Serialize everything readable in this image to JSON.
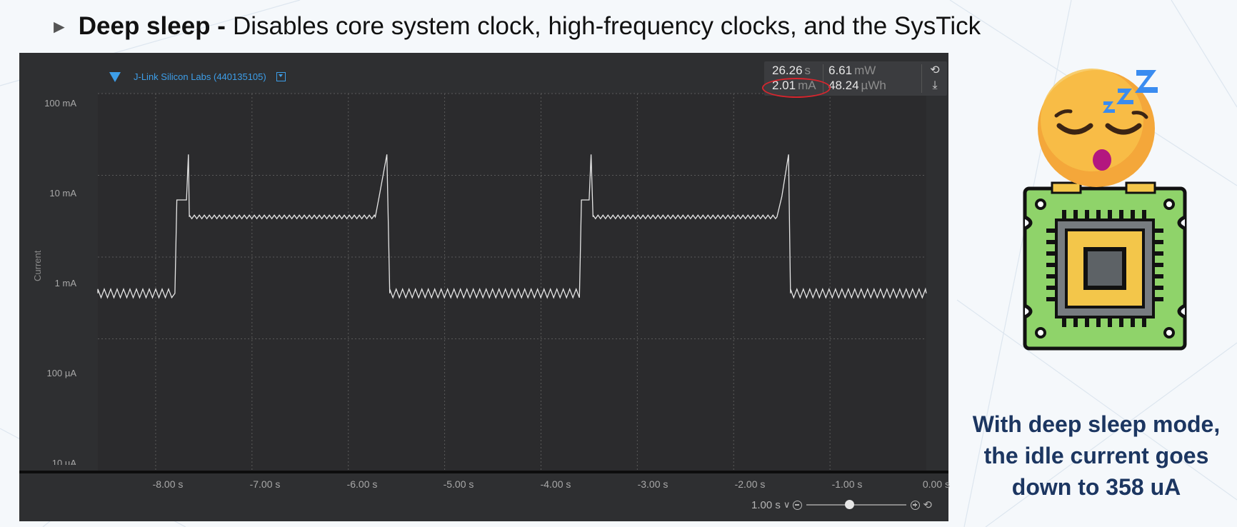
{
  "heading": {
    "bullet": "►",
    "bold": "Deep sleep -",
    "text": "Disables core system clock, high-frequency clocks, and the SysTick"
  },
  "profiler": {
    "device": "J-Link Silicon Labs (440135105)",
    "stats": {
      "time": "26.26",
      "time_unit": "s",
      "power": "6.61",
      "power_unit": "mW",
      "current": "2.01",
      "current_unit": "mA",
      "energy": "48.24",
      "energy_unit": "µWh"
    },
    "y_axis": {
      "title": "Current",
      "ticks": [
        "100 mA",
        "10 mA",
        "1 mA",
        "100 µA",
        "10 µA"
      ]
    },
    "x_axis": {
      "ticks": [
        "-8.00 s",
        "-7.00 s",
        "-6.00 s",
        "-5.00 s",
        "-4.00 s",
        "-3.00 s",
        "-2.00 s",
        "-1.00 s",
        "0.00 s"
      ]
    },
    "zoom": {
      "value": "1.00 s",
      "slider_fraction": 0.43
    }
  },
  "chart_data": {
    "type": "line",
    "ylabel": "Current",
    "yscale": "log",
    "ylim": [
      "10 µA",
      "100 mA"
    ],
    "xlim": [
      -8.6,
      0.0
    ],
    "x_unit": "s",
    "series": [
      {
        "points": [
          [
            -8.6,
            0.36
          ],
          [
            -7.8,
            0.36
          ],
          [
            -7.78,
            5.0
          ],
          [
            -7.68,
            5.0
          ],
          [
            -7.66,
            18.0
          ],
          [
            -7.65,
            3.1
          ],
          [
            -5.72,
            3.1
          ],
          [
            -5.68,
            5.5
          ],
          [
            -5.6,
            18.0
          ],
          [
            -5.57,
            0.36
          ],
          [
            -3.6,
            0.36
          ],
          [
            -3.58,
            5.0
          ],
          [
            -3.5,
            5.0
          ],
          [
            -3.48,
            18.0
          ],
          [
            -3.46,
            3.1
          ],
          [
            -1.55,
            3.1
          ],
          [
            -1.5,
            5.5
          ],
          [
            -1.43,
            18.0
          ],
          [
            -1.41,
            0.36
          ],
          [
            0.0,
            0.36
          ]
        ]
      }
    ],
    "grid": true
  },
  "colors": {
    "accent": "#3d9ee8",
    "highlight": "#d7262e",
    "caption": "#1c3661",
    "panel": "#2e2f31"
  },
  "caption": {
    "line1": "With deep sleep mode,",
    "line2": "the idle current goes",
    "line3": "down to 358 uA"
  },
  "illustration": {
    "icon": "sleeping-face-on-chip-icon"
  }
}
